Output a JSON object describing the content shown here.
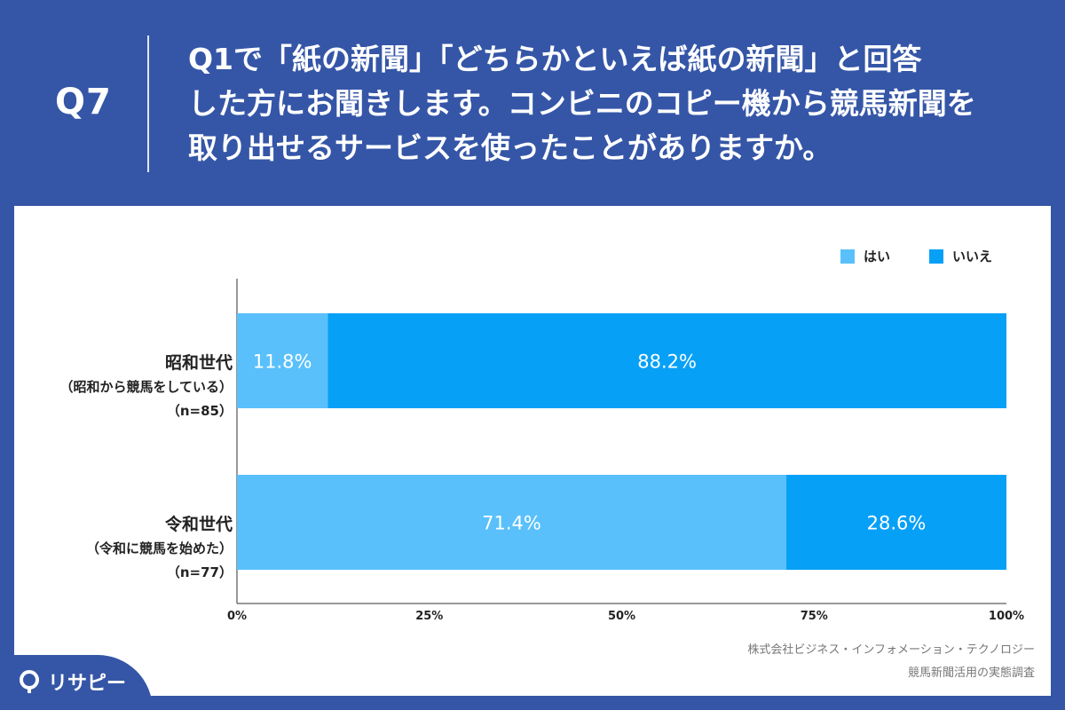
{
  "header": {
    "question_id": "Q7",
    "question_lines": [
      "Q1で「紙の新聞」「どちらかといえば紙の新聞」と回答",
      "した方にお聞きします。コンビニのコピー機から競馬新聞を",
      "取り出せるサービスを使ったことがありますか。"
    ]
  },
  "colors": {
    "header_bg": "#3556a7",
    "yes": "#59c0fb",
    "no": "#07a0f7"
  },
  "categories": [
    {
      "name": "昭和世代",
      "sub": "（昭和から競馬をしている）",
      "n": "（n=85）"
    },
    {
      "name": "令和世代",
      "sub": "（令和に競馬を始めた）",
      "n": "（n=77）"
    }
  ],
  "chart_data": {
    "type": "bar",
    "orientation": "horizontal",
    "stacked": true,
    "categories": [
      "昭和世代",
      "令和世代"
    ],
    "series": [
      {
        "name": "はい",
        "values": [
          11.8,
          71.4
        ],
        "labels": [
          "11.8%",
          "71.4%"
        ]
      },
      {
        "name": "いいえ",
        "values": [
          88.2,
          28.6
        ],
        "labels": [
          "88.2%",
          "28.6%"
        ]
      }
    ],
    "xlim": [
      0,
      100
    ],
    "x_ticks": [
      "0%",
      "25%",
      "50%",
      "75%",
      "100%"
    ],
    "legend_position": "top-right",
    "grid": false
  },
  "legend": {
    "yes": "はい",
    "no": "いいえ"
  },
  "source": {
    "line1": "株式会社ビジネス・インフォメーション・テクノロジー",
    "line2": "競馬新聞活用の実態調査"
  },
  "logo": {
    "text": "リサピー"
  }
}
